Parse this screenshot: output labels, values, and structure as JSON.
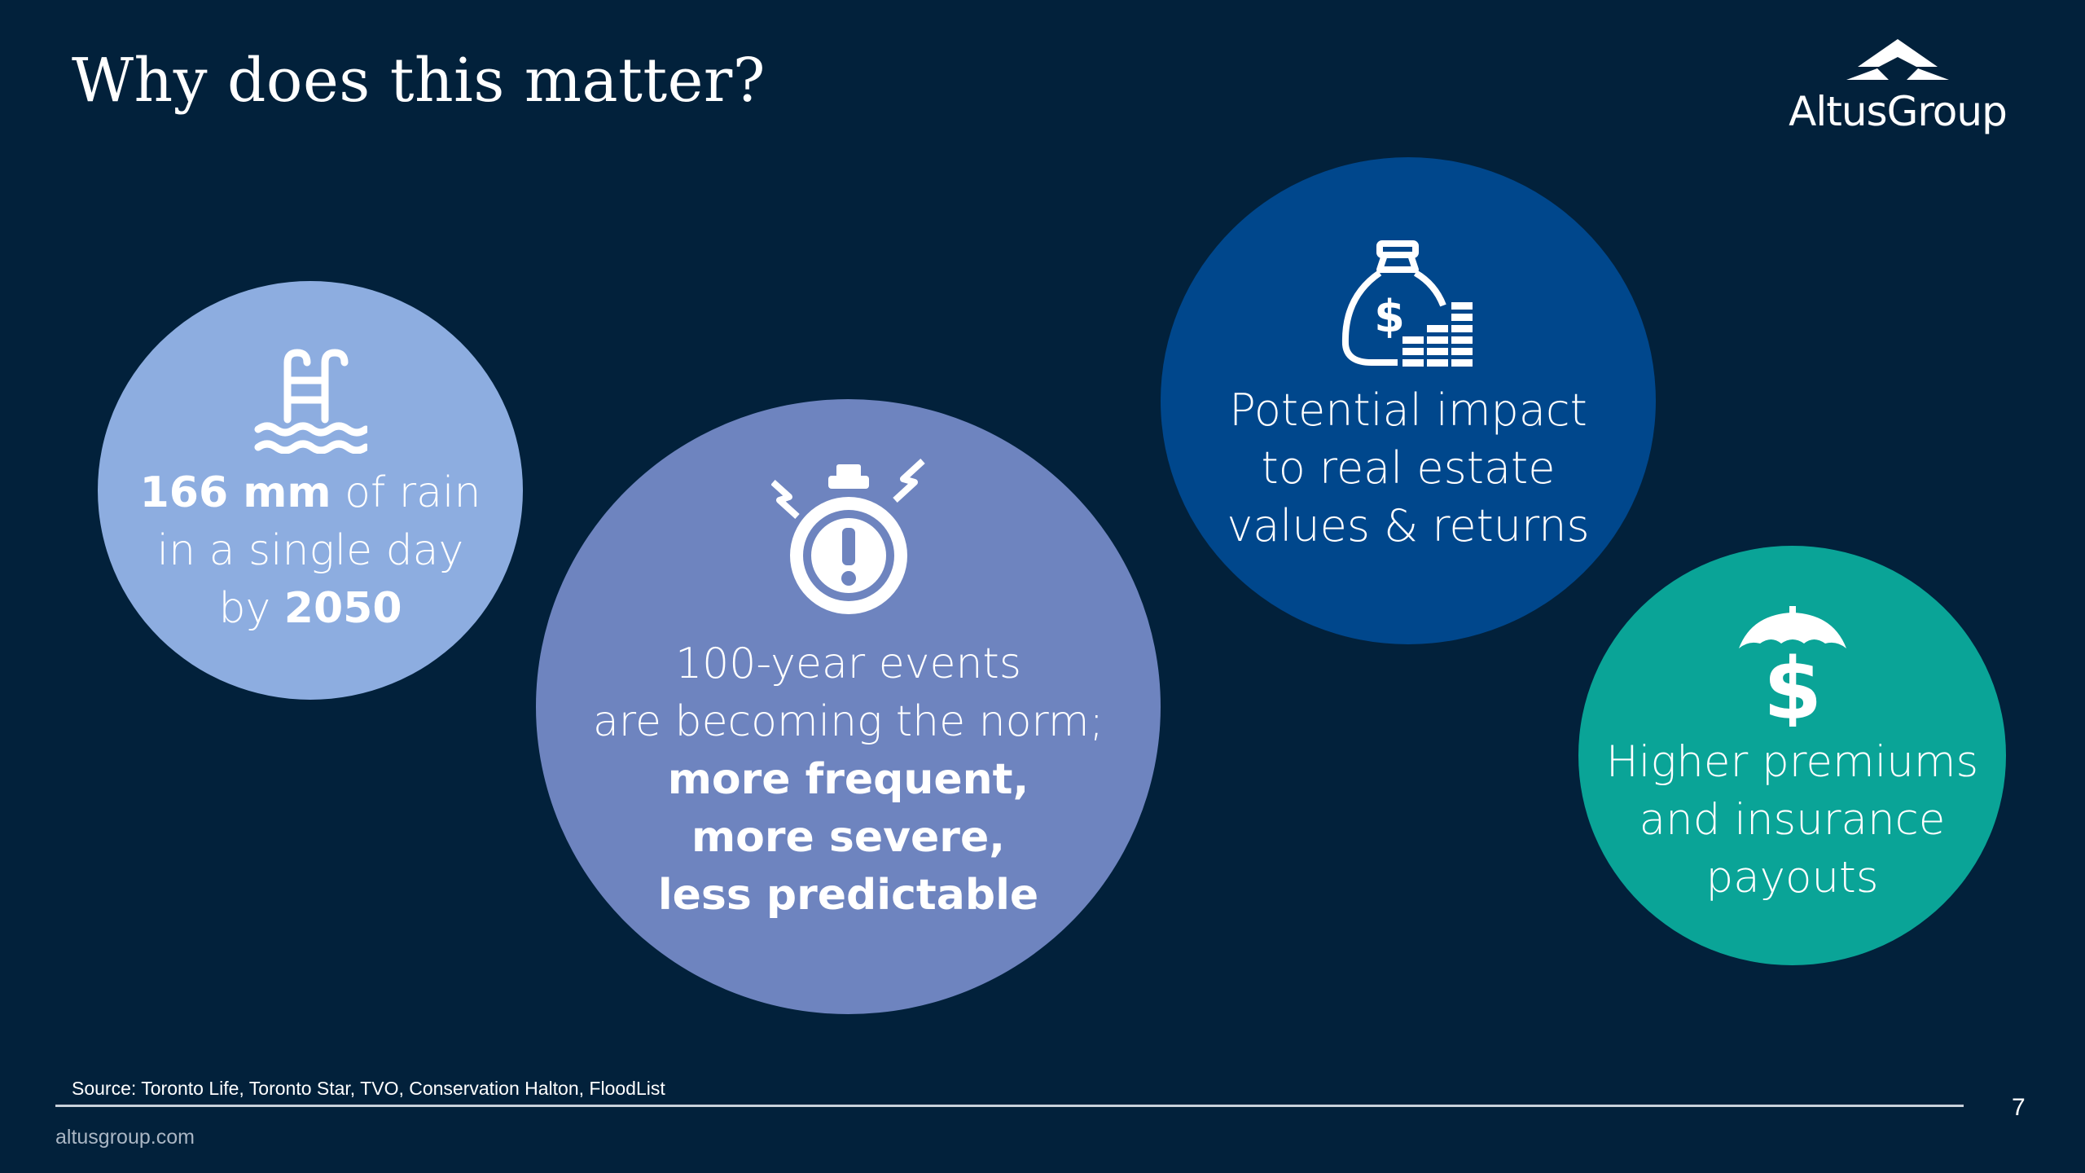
{
  "slide": {
    "title": "Why does this matter?",
    "page_number": "7",
    "source": "Source: Toronto Life, Toronto Star, TVO, Conservation Halton, FloodList",
    "website": "altusgroup.com"
  },
  "logo": {
    "text": "AltusGroup"
  },
  "bubbles": {
    "rain": {
      "icon": "swimming-pool-ladder-icon",
      "color": "#8dade0",
      "line1_bold": "166 mm",
      "line1_rest": " of rain",
      "line2": "in a single day",
      "line3_rest": "by ",
      "line3_bold": "2050"
    },
    "events": {
      "icon": "stopwatch-alert-icon",
      "color": "#6e84bf",
      "line1": "100-year events",
      "line2": "are becoming the norm;",
      "line3": "more frequent,",
      "line4": "more severe,",
      "line5": "less predictable"
    },
    "value": {
      "icon": "money-bag-icon",
      "color": "#00478c",
      "line1": "Potential impact",
      "line2": "to real estate",
      "line3": "values & returns"
    },
    "insurance": {
      "icon": "umbrella-dollar-icon",
      "color": "#0aa497",
      "line1": "Higher premiums",
      "line2": "and insurance",
      "line3": "payouts"
    }
  }
}
